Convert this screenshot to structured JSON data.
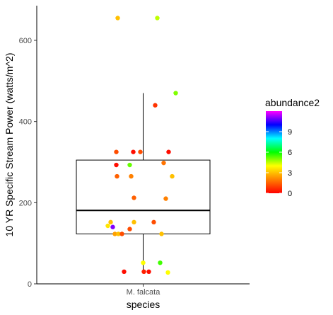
{
  "chart_data": {
    "type": "scatter",
    "subtype": "boxplot-with-jitter",
    "xlabel": "species",
    "ylabel": "10 YR Specific Stream Power (watts/m^2)",
    "categories": [
      "M. falcata"
    ],
    "yticks": [
      0,
      200,
      400,
      600
    ],
    "ylim": [
      0,
      680
    ],
    "grid": false,
    "legend": {
      "title": "abundance2",
      "position": "right",
      "ticks": [
        0,
        3,
        6,
        9
      ],
      "range": [
        0,
        12
      ],
      "colors": [
        "#ff0000",
        "#ff8000",
        "#ffff00",
        "#00ff00",
        "#00ffff",
        "#0000ff",
        "#ff00ff"
      ]
    },
    "box": {
      "min": 30,
      "q1": 123,
      "median": 181,
      "q3": 305,
      "max": 470
    },
    "points": [
      {
        "y": 655,
        "abundance": 3.0
      },
      {
        "y": 655,
        "abundance": 4.5
      },
      {
        "y": 470,
        "abundance": 5.0
      },
      {
        "y": 440,
        "abundance": 0.8
      },
      {
        "y": 325,
        "abundance": 1.2
      },
      {
        "y": 325,
        "abundance": 0.2
      },
      {
        "y": 325,
        "abundance": 1.2
      },
      {
        "y": 325,
        "abundance": 0.2
      },
      {
        "y": 298,
        "abundance": 1.8
      },
      {
        "y": 293,
        "abundance": 0.2
      },
      {
        "y": 293,
        "abundance": 5.2
      },
      {
        "y": 265,
        "abundance": 1.5
      },
      {
        "y": 265,
        "abundance": 2.0
      },
      {
        "y": 265,
        "abundance": 3.0
      },
      {
        "y": 212,
        "abundance": 1.5
      },
      {
        "y": 210,
        "abundance": 2.0
      },
      {
        "y": 152,
        "abundance": 3.0
      },
      {
        "y": 152,
        "abundance": 3.0
      },
      {
        "y": 152,
        "abundance": 1.2
      },
      {
        "y": 143,
        "abundance": 3.6
      },
      {
        "y": 140,
        "abundance": 11.0
      },
      {
        "y": 135,
        "abundance": 1.2
      },
      {
        "y": 123,
        "abundance": 2.5
      },
      {
        "y": 123,
        "abundance": 3.0
      },
      {
        "y": 123,
        "abundance": 1.2
      },
      {
        "y": 123,
        "abundance": 3.0
      },
      {
        "y": 52,
        "abundance": 4.0
      },
      {
        "y": 52,
        "abundance": 5.5
      },
      {
        "y": 30,
        "abundance": 0.2
      },
      {
        "y": 30,
        "abundance": 0.5
      },
      {
        "y": 30,
        "abundance": 0.2
      },
      {
        "y": 28,
        "abundance": 4.0
      }
    ]
  }
}
